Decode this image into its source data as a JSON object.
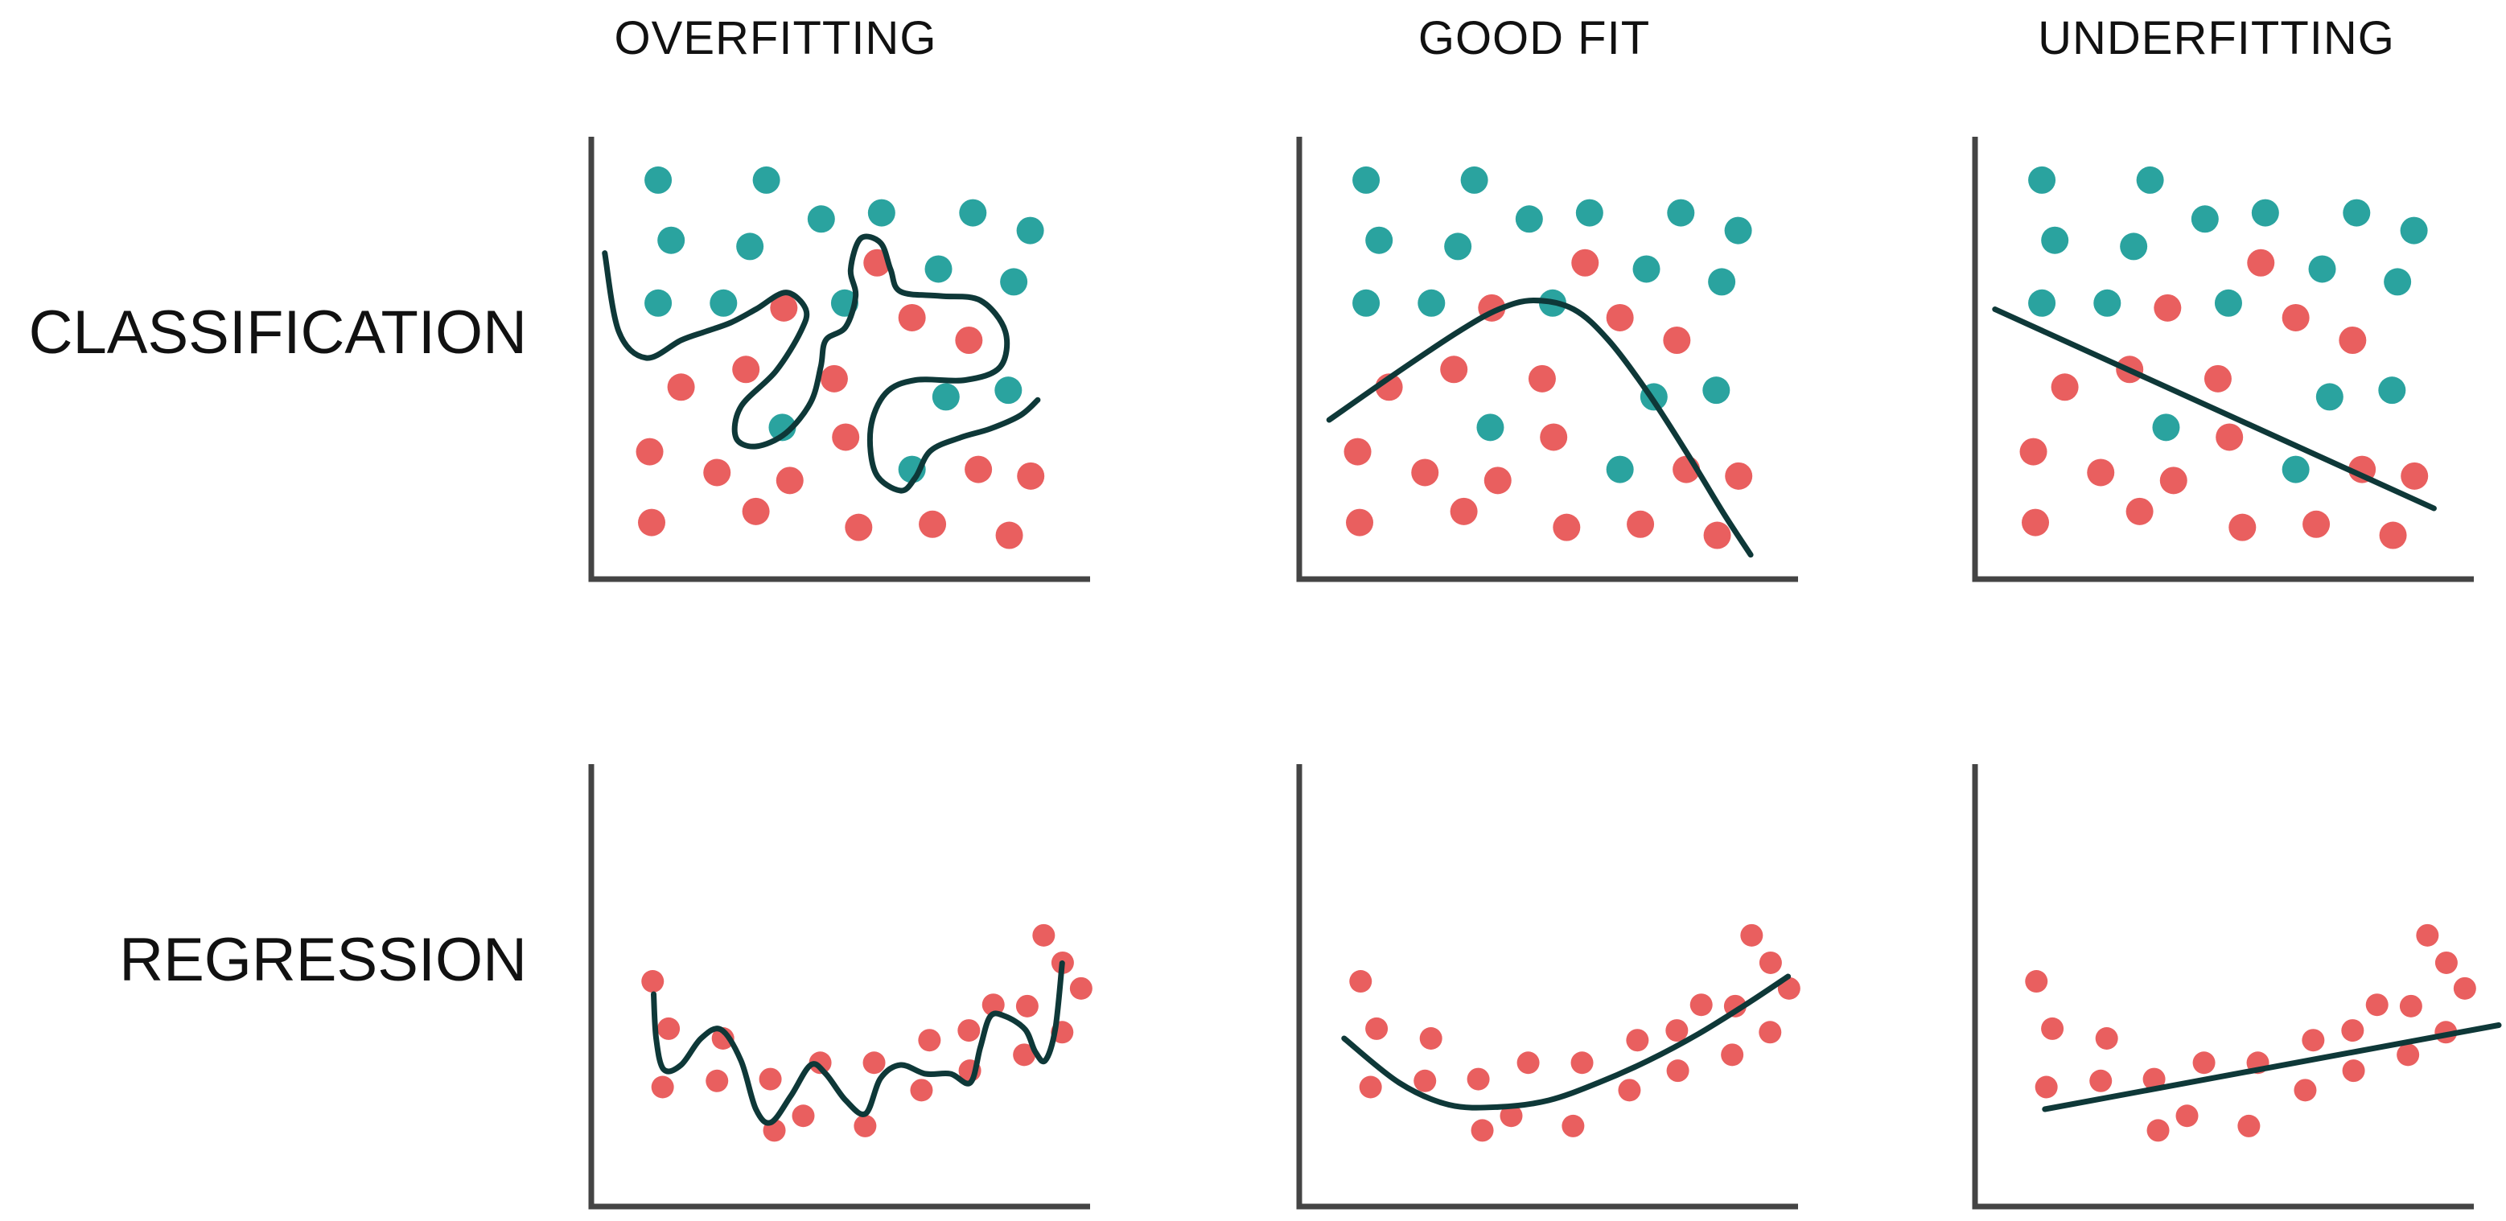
{
  "columns": [
    "OVERFITTING",
    "GOOD FIT",
    "UNDERFITTING"
  ],
  "rows": [
    "CLASSIFICATION",
    "REGRESSION"
  ],
  "colors": {
    "teal": "#2aa39f",
    "red": "#e95f5f",
    "curve": "#0e3838",
    "axis": "#444444"
  },
  "classification": {
    "points": [
      {
        "x": 0.134,
        "y": 0.902,
        "c": "teal"
      },
      {
        "x": 0.351,
        "y": 0.902,
        "c": "teal"
      },
      {
        "x": 0.16,
        "y": 0.766,
        "c": "teal"
      },
      {
        "x": 0.318,
        "y": 0.752,
        "c": "teal"
      },
      {
        "x": 0.461,
        "y": 0.814,
        "c": "teal"
      },
      {
        "x": 0.582,
        "y": 0.828,
        "c": "teal"
      },
      {
        "x": 0.765,
        "y": 0.828,
        "c": "teal"
      },
      {
        "x": 0.88,
        "y": 0.788,
        "c": "teal"
      },
      {
        "x": 0.696,
        "y": 0.701,
        "c": "teal"
      },
      {
        "x": 0.847,
        "y": 0.672,
        "c": "teal"
      },
      {
        "x": 0.134,
        "y": 0.624,
        "c": "teal"
      },
      {
        "x": 0.265,
        "y": 0.624,
        "c": "teal"
      },
      {
        "x": 0.508,
        "y": 0.624,
        "c": "teal"
      },
      {
        "x": 0.711,
        "y": 0.412,
        "c": "teal"
      },
      {
        "x": 0.836,
        "y": 0.427,
        "c": "teal"
      },
      {
        "x": 0.383,
        "y": 0.343,
        "c": "teal"
      },
      {
        "x": 0.643,
        "y": 0.248,
        "c": "teal"
      },
      {
        "x": 0.573,
        "y": 0.715,
        "c": "red"
      },
      {
        "x": 0.386,
        "y": 0.613,
        "c": "red"
      },
      {
        "x": 0.643,
        "y": 0.591,
        "c": "red"
      },
      {
        "x": 0.757,
        "y": 0.54,
        "c": "red"
      },
      {
        "x": 0.31,
        "y": 0.474,
        "c": "red"
      },
      {
        "x": 0.487,
        "y": 0.453,
        "c": "red"
      },
      {
        "x": 0.18,
        "y": 0.434,
        "c": "red"
      },
      {
        "x": 0.51,
        "y": 0.321,
        "c": "red"
      },
      {
        "x": 0.117,
        "y": 0.288,
        "c": "red"
      },
      {
        "x": 0.252,
        "y": 0.241,
        "c": "red"
      },
      {
        "x": 0.398,
        "y": 0.223,
        "c": "red"
      },
      {
        "x": 0.776,
        "y": 0.248,
        "c": "red"
      },
      {
        "x": 0.881,
        "y": 0.233,
        "c": "red"
      },
      {
        "x": 0.121,
        "y": 0.128,
        "c": "red"
      },
      {
        "x": 0.33,
        "y": 0.153,
        "c": "red"
      },
      {
        "x": 0.536,
        "y": 0.117,
        "c": "red"
      },
      {
        "x": 0.684,
        "y": 0.124,
        "c": "red"
      },
      {
        "x": 0.838,
        "y": 0.099,
        "c": "red"
      }
    ],
    "curves": {
      "overfit": [
        [
          0.027,
          0.737
        ],
        [
          0.055,
          0.56
        ],
        [
          0.11,
          0.5
        ],
        [
          0.18,
          0.54
        ],
        [
          0.23,
          0.56
        ],
        [
          0.28,
          0.58
        ],
        [
          0.33,
          0.61
        ],
        [
          0.39,
          0.648
        ],
        [
          0.43,
          0.61
        ],
        [
          0.42,
          0.56
        ],
        [
          0.37,
          0.47
        ],
        [
          0.3,
          0.39
        ],
        [
          0.29,
          0.32
        ],
        [
          0.33,
          0.3
        ],
        [
          0.39,
          0.33
        ],
        [
          0.44,
          0.4
        ],
        [
          0.46,
          0.48
        ],
        [
          0.47,
          0.54
        ],
        [
          0.51,
          0.57
        ],
        [
          0.53,
          0.64
        ],
        [
          0.52,
          0.7
        ],
        [
          0.54,
          0.77
        ],
        [
          0.58,
          0.76
        ],
        [
          0.6,
          0.7
        ],
        [
          0.62,
          0.65
        ],
        [
          0.7,
          0.64
        ],
        [
          0.78,
          0.63
        ],
        [
          0.83,
          0.56
        ],
        [
          0.82,
          0.48
        ],
        [
          0.75,
          0.45
        ],
        [
          0.65,
          0.45
        ],
        [
          0.59,
          0.42
        ],
        [
          0.56,
          0.34
        ],
        [
          0.57,
          0.24
        ],
        [
          0.62,
          0.2
        ],
        [
          0.65,
          0.23
        ],
        [
          0.68,
          0.29
        ],
        [
          0.74,
          0.32
        ],
        [
          0.8,
          0.34
        ],
        [
          0.86,
          0.37
        ],
        [
          0.895,
          0.405
        ]
      ],
      "goodfit": [
        [
          0.06,
          0.36
        ],
        [
          0.2,
          0.47
        ],
        [
          0.32,
          0.56
        ],
        [
          0.4,
          0.61
        ],
        [
          0.47,
          0.63
        ],
        [
          0.55,
          0.61
        ],
        [
          0.62,
          0.54
        ],
        [
          0.7,
          0.42
        ],
        [
          0.78,
          0.28
        ],
        [
          0.85,
          0.15
        ],
        [
          0.905,
          0.055
        ]
      ],
      "underfit": [
        [
          0.04,
          0.61
        ],
        [
          0.92,
          0.16
        ]
      ]
    }
  },
  "regression": {
    "points": [
      {
        "x": 0.123,
        "y": 0.509
      },
      {
        "x": 0.155,
        "y": 0.402
      },
      {
        "x": 0.264,
        "y": 0.38
      },
      {
        "x": 0.143,
        "y": 0.27
      },
      {
        "x": 0.252,
        "y": 0.284
      },
      {
        "x": 0.359,
        "y": 0.288
      },
      {
        "x": 0.459,
        "y": 0.325
      },
      {
        "x": 0.567,
        "y": 0.325
      },
      {
        "x": 0.678,
        "y": 0.376
      },
      {
        "x": 0.757,
        "y": 0.398
      },
      {
        "x": 0.806,
        "y": 0.456
      },
      {
        "x": 0.874,
        "y": 0.453
      },
      {
        "x": 0.367,
        "y": 0.172
      },
      {
        "x": 0.425,
        "y": 0.205
      },
      {
        "x": 0.549,
        "y": 0.182
      },
      {
        "x": 0.662,
        "y": 0.263
      },
      {
        "x": 0.759,
        "y": 0.307
      },
      {
        "x": 0.868,
        "y": 0.343
      },
      {
        "x": 0.944,
        "y": 0.394
      },
      {
        "x": 0.907,
        "y": 0.613
      },
      {
        "x": 0.945,
        "y": 0.551
      },
      {
        "x": 0.982,
        "y": 0.493
      }
    ],
    "curves": {
      "overfit": [
        [
          0.125,
          0.48
        ],
        [
          0.13,
          0.38
        ],
        [
          0.145,
          0.31
        ],
        [
          0.18,
          0.32
        ],
        [
          0.22,
          0.38
        ],
        [
          0.26,
          0.4
        ],
        [
          0.3,
          0.33
        ],
        [
          0.33,
          0.22
        ],
        [
          0.36,
          0.19
        ],
        [
          0.4,
          0.25
        ],
        [
          0.44,
          0.32
        ],
        [
          0.47,
          0.3
        ],
        [
          0.51,
          0.24
        ],
        [
          0.55,
          0.21
        ],
        [
          0.58,
          0.29
        ],
        [
          0.62,
          0.32
        ],
        [
          0.67,
          0.3
        ],
        [
          0.72,
          0.3
        ],
        [
          0.76,
          0.28
        ],
        [
          0.78,
          0.36
        ],
        [
          0.8,
          0.43
        ],
        [
          0.83,
          0.43
        ],
        [
          0.87,
          0.4
        ],
        [
          0.89,
          0.35
        ],
        [
          0.91,
          0.33
        ],
        [
          0.93,
          0.4
        ],
        [
          0.944,
          0.55
        ]
      ],
      "goodfit": [
        [
          0.09,
          0.38
        ],
        [
          0.2,
          0.28
        ],
        [
          0.3,
          0.23
        ],
        [
          0.4,
          0.225
        ],
        [
          0.5,
          0.24
        ],
        [
          0.6,
          0.28
        ],
        [
          0.7,
          0.33
        ],
        [
          0.8,
          0.39
        ],
        [
          0.9,
          0.46
        ],
        [
          0.98,
          0.52
        ]
      ],
      "underfit": [
        [
          0.14,
          0.22
        ],
        [
          1.05,
          0.41
        ]
      ]
    }
  }
}
